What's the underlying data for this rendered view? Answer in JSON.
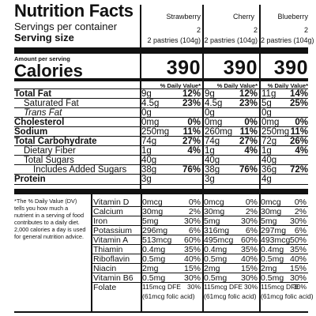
{
  "label": {
    "title": "Nutrition Facts",
    "servings_label": "Servings per container",
    "serving_size_label": "Serving size",
    "amount_per_serving": "Amount per serving",
    "calories_label": "Calories",
    "dv_header": "% Daily Value*",
    "flavors": [
      {
        "name": "Strawberry",
        "servings": "2",
        "serving_size": "2 pastries (104g)",
        "calories": "390"
      },
      {
        "name": "Cherry",
        "servings": "2",
        "serving_size": "2 pastries (104g)",
        "calories": "390"
      },
      {
        "name": "Blueberry",
        "servings": "2",
        "serving_size": "2 pastries (104g)",
        "calories": "390"
      }
    ],
    "nutrients": [
      {
        "name": "Total Fat",
        "vals": [
          [
            "9g",
            "12%"
          ],
          [
            "9g",
            "12%"
          ],
          [
            "11g",
            "14%"
          ]
        ]
      },
      {
        "name": "Saturated Fat",
        "vals": [
          [
            "4.5g",
            "23%"
          ],
          [
            "4.5g",
            "23%"
          ],
          [
            "5g",
            "25%"
          ]
        ]
      },
      {
        "name": "Trans Fat",
        "vals": [
          [
            "0g",
            ""
          ],
          [
            "0g",
            ""
          ],
          [
            "0g",
            ""
          ]
        ]
      },
      {
        "name": "Cholesterol",
        "vals": [
          [
            "0mg",
            "0%"
          ],
          [
            "0mg",
            "0%"
          ],
          [
            "0mg",
            "0%"
          ]
        ]
      },
      {
        "name": "Sodium",
        "vals": [
          [
            "250mg",
            "11%"
          ],
          [
            "260mg",
            "11%"
          ],
          [
            "250mg",
            "11%"
          ]
        ]
      },
      {
        "name": "Total Carbohydrate",
        "vals": [
          [
            "74g",
            "27%"
          ],
          [
            "74g",
            "27%"
          ],
          [
            "72g",
            "26%"
          ]
        ]
      },
      {
        "name": "Dietary Fiber",
        "vals": [
          [
            "1g",
            "4%"
          ],
          [
            "1g",
            "4%"
          ],
          [
            "1g",
            "4%"
          ]
        ]
      },
      {
        "name": "Total Sugars",
        "vals": [
          [
            "40g",
            ""
          ],
          [
            "40g",
            ""
          ],
          [
            "40g",
            ""
          ]
        ]
      },
      {
        "name": "Includes Added Sugars",
        "vals": [
          [
            "38g",
            "76%"
          ],
          [
            "38g",
            "76%"
          ],
          [
            "36g",
            "72%"
          ]
        ]
      },
      {
        "name": "Protein",
        "vals": [
          [
            "3g",
            ""
          ],
          [
            "3g",
            ""
          ],
          [
            "4g",
            ""
          ]
        ]
      }
    ],
    "footnote": "*The % Daily Value (DV) tells you how much a nutrient in a serving of food contributes to a daily diet. 2,000 calories a day is used for general nutrition advice.",
    "vitamins": [
      {
        "name": "Vitamin D",
        "vals": [
          [
            "0mcg",
            "0%"
          ],
          [
            "0mcg",
            "0%"
          ],
          [
            "0mcg",
            "0%"
          ]
        ]
      },
      {
        "name": "Calcium",
        "vals": [
          [
            "30mg",
            "2%"
          ],
          [
            "30mg",
            "2%"
          ],
          [
            "30mg",
            "2%"
          ]
        ]
      },
      {
        "name": "Iron",
        "vals": [
          [
            "5mg",
            "30%"
          ],
          [
            "5mg",
            "30%"
          ],
          [
            "5mg",
            "30%"
          ]
        ]
      },
      {
        "name": "Potassium",
        "vals": [
          [
            "296mg",
            "6%"
          ],
          [
            "316mg",
            "6%"
          ],
          [
            "297mg",
            "6%"
          ]
        ]
      },
      {
        "name": "Vitamin A",
        "vals": [
          [
            "513mcg",
            "60%"
          ],
          [
            "495mcg",
            "60%"
          ],
          [
            "493mcg",
            "50%"
          ]
        ]
      },
      {
        "name": "Thiamin",
        "vals": [
          [
            "0.4mg",
            "35%"
          ],
          [
            "0.4mg",
            "35%"
          ],
          [
            "0.4mg",
            "35%"
          ]
        ]
      },
      {
        "name": "Riboflavin",
        "vals": [
          [
            "0.5mg",
            "40%"
          ],
          [
            "0.5mg",
            "40%"
          ],
          [
            "0.5mg",
            "40%"
          ]
        ]
      },
      {
        "name": "Niacin",
        "vals": [
          [
            "2mg",
            "15%"
          ],
          [
            "2mg",
            "15%"
          ],
          [
            "2mg",
            "15%"
          ]
        ]
      },
      {
        "name": "Vitamin B6",
        "vals": [
          [
            "0.5mg",
            "30%"
          ],
          [
            "0.5mg",
            "30%"
          ],
          [
            "0.5mg",
            "30%"
          ]
        ]
      },
      {
        "name": "Folate",
        "vals": [
          [
            "115mcg DFE",
            "30%"
          ],
          [
            "115mcg DFE",
            "30%"
          ],
          [
            "115mcg DFE",
            "30%"
          ]
        ],
        "sub": [
          "(61mcg folic acid)",
          "(61mcg folic acid)",
          "(61mcg folic acid)"
        ]
      }
    ]
  }
}
